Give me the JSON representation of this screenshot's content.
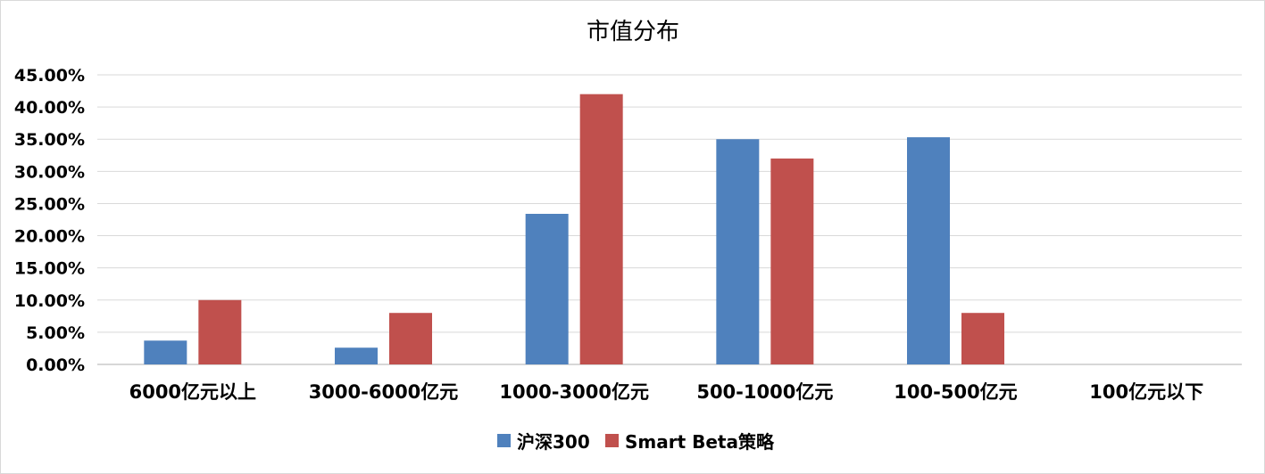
{
  "chart_data": {
    "type": "bar",
    "title": "市值分布",
    "xlabel": "",
    "ylabel": "",
    "categories": [
      "6000亿元以上",
      "3000-6000亿元",
      "1000-3000亿元",
      "500-1000亿元",
      "100-500亿元",
      "100亿元以下"
    ],
    "series": [
      {
        "name": "沪深300",
        "color": "#4f81bd",
        "values": [
          3.7,
          2.6,
          23.4,
          35.0,
          35.3,
          0.0
        ]
      },
      {
        "name": "Smart Beta策略",
        "color": "#c0504d",
        "values": [
          10.0,
          8.0,
          42.0,
          32.0,
          8.0,
          0.0
        ]
      }
    ],
    "ylim": [
      0,
      45
    ],
    "yticks": [
      0,
      5,
      10,
      15,
      20,
      25,
      30,
      35,
      40,
      45
    ],
    "ytick_labels": [
      "0.00%",
      "5.00%",
      "10.00%",
      "15.00%",
      "20.00%",
      "25.00%",
      "30.00%",
      "35.00%",
      "40.00%",
      "45.00%"
    ],
    "grid": true,
    "legend_position": "bottom"
  }
}
